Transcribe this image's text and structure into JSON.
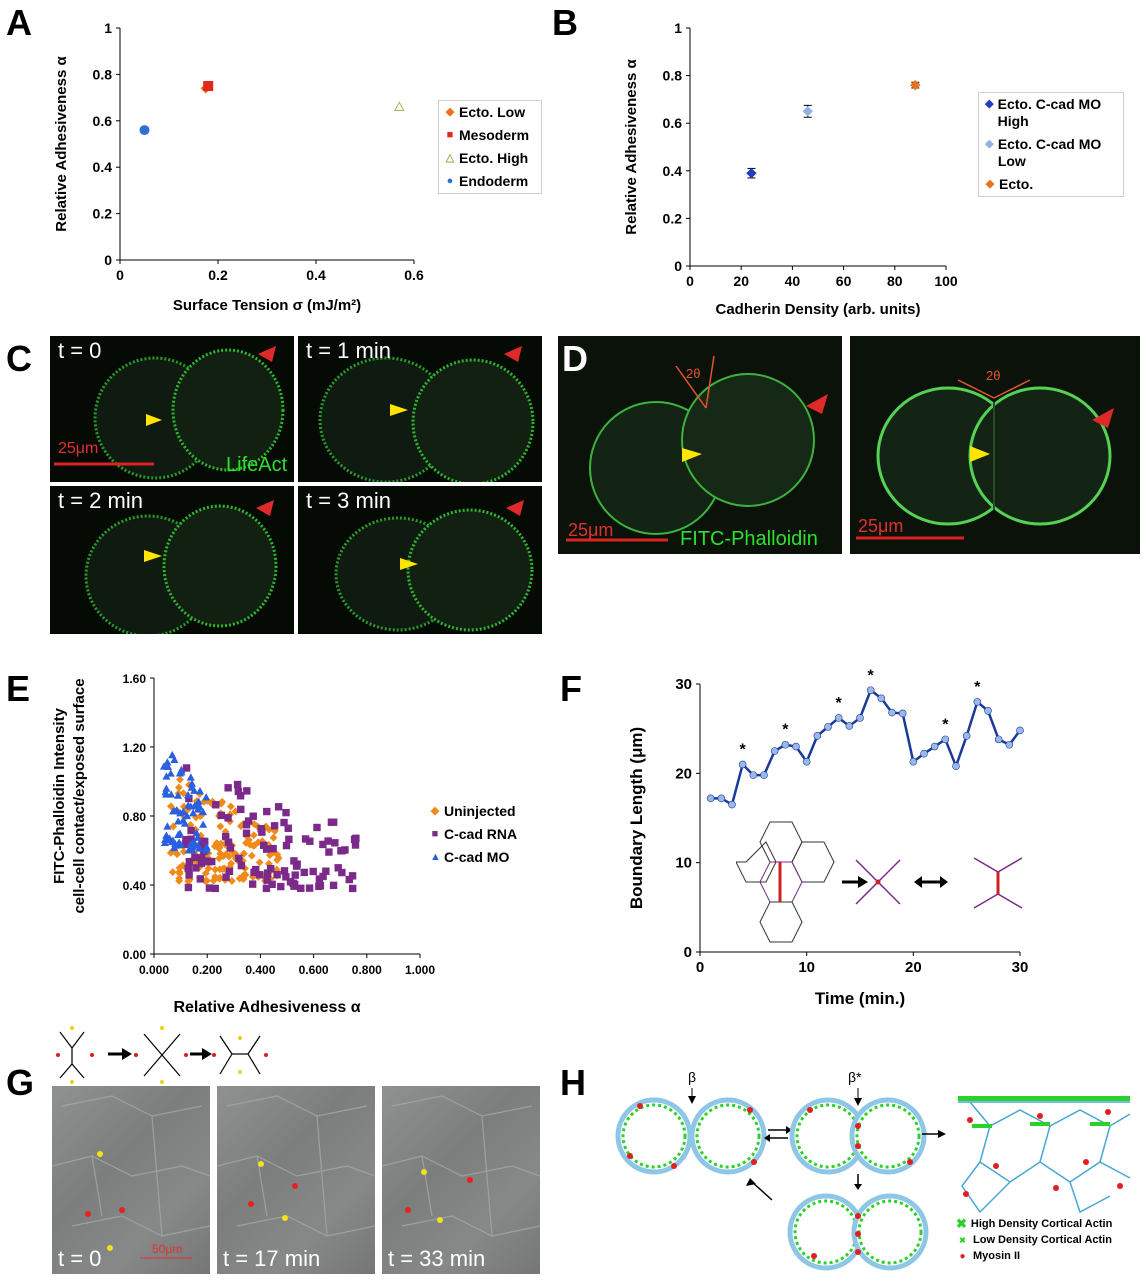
{
  "panels": {
    "A": "A",
    "B": "B",
    "C": "C",
    "D": "D",
    "E": "E",
    "F": "F",
    "G": "G",
    "H": "H"
  },
  "chart_data": [
    {
      "id": "A",
      "type": "scatter",
      "xlabel": "Surface Tension σ (mJ/m²)",
      "ylabel": "Relative Adhesiveness α",
      "xlim": [
        0,
        0.6
      ],
      "ylim": [
        0,
        1
      ],
      "xticks": [
        "0",
        "0.2",
        "0.4",
        "0.6"
      ],
      "yticks": [
        "0",
        "0.2",
        "0.4",
        "0.6",
        "0.8",
        "1"
      ],
      "legend_position": "right",
      "series": [
        {
          "name": "Ecto. Low",
          "color": "#e8731c",
          "marker": "diamond",
          "points": [
            {
              "x": 0.175,
              "y": 0.74,
              "err": 0.012
            }
          ]
        },
        {
          "name": "Mesoderm",
          "color": "#e0281b",
          "marker": "square",
          "points": [
            {
              "x": 0.18,
              "y": 0.75,
              "err": 0.012
            }
          ]
        },
        {
          "name": "Ecto. High",
          "color": "#9bbb59",
          "marker": "triangle",
          "points": [
            {
              "x": 0.57,
              "y": 0.66,
              "err": 0.015
            }
          ]
        },
        {
          "name": "Endoderm",
          "color": "#2f6fd6",
          "marker": "circle",
          "points": [
            {
              "x": 0.05,
              "y": 0.56,
              "err": 0.02
            }
          ]
        }
      ]
    },
    {
      "id": "B",
      "type": "scatter",
      "xlabel": "Cadherin Density (arb. units)",
      "ylabel": "Relative Adhesiveness α",
      "xlim": [
        0,
        100
      ],
      "ylim": [
        0,
        1
      ],
      "xticks": [
        "0",
        "20",
        "40",
        "60",
        "80",
        "100"
      ],
      "yticks": [
        "0",
        "0.2",
        "0.4",
        "0.6",
        "0.8",
        "1"
      ],
      "legend_position": "right",
      "series": [
        {
          "name": "Ecto. C-cad MO High",
          "color": "#1f3fbf",
          "marker": "diamond",
          "points": [
            {
              "x": 24,
              "y": 0.39,
              "err": 0.02
            }
          ]
        },
        {
          "name": "Ecto. C-cad MO Low",
          "color": "#8fb4e3",
          "marker": "diamond",
          "points": [
            {
              "x": 46,
              "y": 0.65,
              "err": 0.025
            }
          ]
        },
        {
          "name": "Ecto.",
          "color": "#e8731c",
          "marker": "diamond",
          "points": [
            {
              "x": 88,
              "y": 0.76,
              "err": 0.012
            }
          ]
        }
      ]
    },
    {
      "id": "E",
      "type": "scatter",
      "ylabel_lines": [
        "FITC-Phalloidin Intensity",
        "cell-cell contact/exposed surface"
      ],
      "xlabel": "Relative Adhesiveness α",
      "xlim": [
        0,
        1
      ],
      "ylim": [
        0,
        1.6
      ],
      "xticks": [
        "0.000",
        "0.200",
        "0.400",
        "0.600",
        "0.800",
        "1.000"
      ],
      "yticks": [
        "0.00",
        "0.40",
        "0.80",
        "1.20",
        "1.60"
      ],
      "legend_position": "right",
      "series": [
        {
          "name": "Uninjected",
          "color": "#f08a18",
          "marker": "diamond",
          "x_range": [
            0.06,
            0.48
          ],
          "y_range": [
            0.42,
            1.05
          ],
          "count": 150
        },
        {
          "name": "C-cad RNA",
          "color": "#7b2a8a",
          "marker": "square",
          "x_range": [
            0.12,
            0.78
          ],
          "y_range": [
            0.38,
            1.1
          ],
          "count": 110
        },
        {
          "name": "C-cad MO",
          "color": "#2a5fe0",
          "marker": "triangle",
          "x_range": [
            0.03,
            0.2
          ],
          "y_range": [
            0.6,
            1.28
          ],
          "count": 70
        }
      ]
    },
    {
      "id": "F",
      "type": "line",
      "xlabel": "Time (min.)",
      "ylabel": "Boundary Length (μm)",
      "xlim": [
        0,
        30
      ],
      "ylim": [
        0,
        30
      ],
      "xticks": [
        "0",
        "10",
        "20",
        "30"
      ],
      "yticks": [
        "0",
        "10",
        "20",
        "30"
      ],
      "x": [
        1,
        2,
        3,
        4,
        5,
        6,
        7,
        8,
        9,
        10,
        11,
        12,
        13,
        14,
        15,
        16,
        17,
        18,
        19,
        20,
        21,
        22,
        23,
        24,
        25,
        26,
        27,
        28,
        29,
        30
      ],
      "values": [
        17.2,
        17.2,
        16.5,
        21,
        19.8,
        19.8,
        22.5,
        23.2,
        23,
        21.3,
        24.2,
        25.2,
        26.2,
        25.3,
        26.2,
        29.3,
        28.4,
        26.8,
        26.7,
        21.3,
        22.2,
        23,
        23.8,
        20.8,
        24.2,
        28,
        27,
        23.8,
        23.2,
        24.8
      ],
      "star_at_x": [
        4,
        8,
        13,
        16,
        23,
        26
      ],
      "star_label": "*"
    }
  ],
  "panelC": {
    "frames": [
      "t = 0",
      "t = 1 min",
      "t = 2 min",
      "t = 3 min"
    ],
    "scale_label": "25μm",
    "stain_label": "LifeAct"
  },
  "panelD": {
    "scale_label_left": "25μm",
    "scale_label_right": "25μm",
    "stain_label": "FITC-Phalloidin",
    "angle_label": "2θ"
  },
  "panelG": {
    "frames": [
      "t = 0",
      "t = 17 min",
      "t = 33 min"
    ],
    "scale_label": "50μm"
  },
  "panelH": {
    "beta_label": "β",
    "beta_star_label": "β*",
    "legend": [
      {
        "label": "High Density Cortical Actin",
        "color": "#2bd12b"
      },
      {
        "label": "Low Density Cortical Actin",
        "color": "#2bd12b"
      },
      {
        "label": "Myosin II",
        "color": "#e02020"
      }
    ]
  }
}
